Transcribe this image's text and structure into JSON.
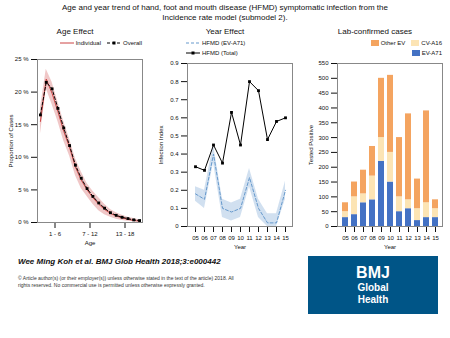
{
  "title": "Age and year trend of hand, foot and mouth disease (HFMD) symptomatic infection from the",
  "subtitle": "Incidence rate model (submodel 2).",
  "annotations": [
    "Wee Ming Koh et al. BMJ Glob Health 2018;3:e000442",
    "© Article author(s) (or their employer(s)) unless otherwise stated in the text of the article) 2018. All\nrights reserved. No commercial use is permitted unless otherwise expressly granted.",
    "BMJ",
    "Global",
    "Health"
  ],
  "chart_data": [
    {
      "type": "line",
      "title": "Age Effect",
      "xlabel": "Age",
      "ylabel": "Proportion of Cases",
      "x": [
        1,
        2,
        3,
        4,
        5,
        6,
        7,
        8,
        9,
        10,
        11,
        12,
        13,
        14,
        15,
        16,
        17,
        18
      ],
      "xlim": [
        0.5,
        18.5
      ],
      "xticks": [
        {
          "value": 3.5,
          "label": "1 - 6"
        },
        {
          "value": 9.5,
          "label": "7 - 12"
        },
        {
          "value": 15.5,
          "label": "13 - 18"
        }
      ],
      "ylim": [
        0,
        0.25
      ],
      "yticks": [
        {
          "value": 0,
          "label": "0 %"
        },
        {
          "value": 0.05,
          "label": "5 %"
        },
        {
          "value": 0.1,
          "label": "10 %"
        },
        {
          "value": 0.15,
          "label": "15 %"
        },
        {
          "value": 0.2,
          "label": "20 %"
        },
        {
          "value": 0.25,
          "label": "25 %"
        }
      ],
      "grid": false,
      "legend": "upper right",
      "series": [
        {
          "name": "Individual",
          "color": "#cc4444",
          "line_style": "solid",
          "values": [
            0.155,
            0.22,
            0.198,
            0.17,
            0.14,
            0.115,
            0.085,
            0.065,
            0.05,
            0.038,
            0.028,
            0.02,
            0.014,
            0.01,
            0.007,
            0.005,
            0.003,
            0.002
          ],
          "lower": [
            0.135,
            0.205,
            0.181,
            0.155,
            0.125,
            0.102,
            0.072,
            0.052,
            0.04,
            0.028,
            0.018,
            0.012,
            0.008,
            0.005,
            0.003,
            0.002,
            0.001,
            0.001
          ],
          "upper": [
            0.175,
            0.235,
            0.215,
            0.185,
            0.155,
            0.128,
            0.098,
            0.078,
            0.06,
            0.048,
            0.038,
            0.028,
            0.02,
            0.015,
            0.011,
            0.008,
            0.006,
            0.004
          ]
        },
        {
          "name": "Overall",
          "color": "black",
          "line_style": "dashed",
          "marker": "square",
          "values": [
            0.165,
            0.215,
            0.205,
            0.175,
            0.145,
            0.118,
            0.088,
            0.068,
            0.052,
            0.04,
            0.03,
            0.022,
            0.015,
            0.011,
            0.008,
            0.006,
            0.004,
            0.003
          ]
        }
      ]
    },
    {
      "type": "line",
      "title": "Year Effect",
      "xlabel": "Year",
      "ylabel": "Infection Index",
      "categories": [
        "05",
        "06",
        "07",
        "08",
        "09",
        "10",
        "11",
        "12",
        "13",
        "14",
        "15"
      ],
      "ylim": [
        0,
        0.9
      ],
      "yticks": [
        0,
        0.1,
        0.2,
        0.3,
        0.4,
        0.5,
        0.6,
        0.7,
        0.8,
        0.9
      ],
      "grid": false,
      "legend": "upper left",
      "series": [
        {
          "name": "HFMD (EV-A71)",
          "color": "#6699cc",
          "line_style": "dashed",
          "values": [
            0.18,
            0.15,
            0.4,
            0.1,
            0.08,
            0.1,
            0.27,
            0.1,
            0.02,
            0.02,
            0.2
          ],
          "lower": [
            0.14,
            0.1,
            0.35,
            0.05,
            0.03,
            0.05,
            0.22,
            0.05,
            0.0,
            0.0,
            0.15
          ],
          "upper": [
            0.22,
            0.2,
            0.45,
            0.15,
            0.13,
            0.15,
            0.32,
            0.15,
            0.07,
            0.07,
            0.25
          ]
        },
        {
          "name": "HFMD (Total)",
          "color": "black",
          "line_style": "solid",
          "marker": "square",
          "values": [
            0.33,
            0.31,
            0.45,
            0.35,
            0.63,
            0.45,
            0.8,
            0.75,
            0.48,
            0.58,
            0.6
          ]
        }
      ]
    },
    {
      "type": "bar",
      "stacked": true,
      "title": "Lab-confirmed cases",
      "xlabel": "Year",
      "ylabel": "Tested Positive",
      "categories": [
        "05",
        "06",
        "07",
        "08",
        "09",
        "10",
        "11",
        "12",
        "13",
        "14",
        "15"
      ],
      "ylim": [
        0,
        550
      ],
      "yticks": [
        0,
        50,
        100,
        150,
        200,
        250,
        300,
        350,
        400,
        450,
        500,
        550
      ],
      "grid": false,
      "legend": "upper right",
      "series": [
        {
          "name": "EV-A71",
          "color": "#4472c4",
          "values": [
            30,
            40,
            80,
            90,
            220,
            150,
            50,
            60,
            20,
            30,
            30
          ]
        },
        {
          "name": "CV-A16",
          "color": "#fce4b4",
          "values": [
            20,
            60,
            30,
            80,
            80,
            100,
            50,
            30,
            40,
            50,
            30
          ]
        },
        {
          "name": "Other EV",
          "color": "#f4a460",
          "values": [
            30,
            50,
            80,
            100,
            200,
            260,
            200,
            290,
            100,
            310,
            30
          ]
        }
      ]
    }
  ]
}
